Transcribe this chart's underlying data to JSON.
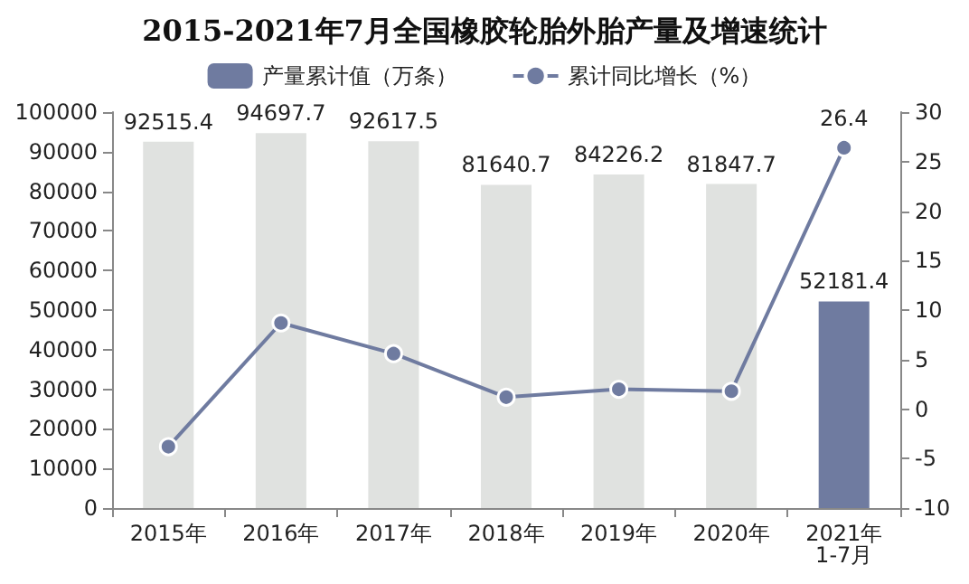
{
  "chart_data": {
    "type": "bar",
    "title": "2015-2021年7月全国橡胶轮胎外胎产量及增速统计",
    "categories": [
      "2015年",
      "2016年",
      "2017年",
      "2018年",
      "2019年",
      "2020年",
      "2021年\n1-7月"
    ],
    "series": [
      {
        "name": "产量累计值（万条）",
        "color": "#6f7ba0",
        "colors": [
          "#e0e2e0",
          "#e0e2e0",
          "#e0e2e0",
          "#e0e2e0",
          "#e0e2e0",
          "#e0e2e0",
          "#6f7ba0"
        ],
        "values": [
          92515.4,
          94697.7,
          92617.5,
          81640.7,
          84226.2,
          81847.7,
          52181.4
        ],
        "value_labels": [
          "92515.4",
          "94697.7",
          "92617.5",
          "81640.7",
          "84226.2",
          "81847.7",
          "52181.4"
        ]
      },
      {
        "name": "累计同比增长（%）",
        "type": "line",
        "axis": "y2",
        "color": "#6f7ba0",
        "values": [
          -3.8,
          8.7,
          5.6,
          1.2,
          2.0,
          1.8,
          26.4
        ],
        "value_labels": [
          null,
          null,
          null,
          null,
          null,
          null,
          "26.4"
        ]
      }
    ],
    "ylim": [
      0,
      100000
    ],
    "yticks": [
      0,
      10000,
      20000,
      30000,
      40000,
      50000,
      60000,
      70000,
      80000,
      90000,
      100000
    ],
    "y2lim": [
      -10,
      30
    ],
    "y2ticks": [
      -10,
      -5,
      0,
      5,
      10,
      15,
      20,
      25,
      30
    ],
    "legend": "top",
    "grid": false,
    "marker": "circle"
  }
}
